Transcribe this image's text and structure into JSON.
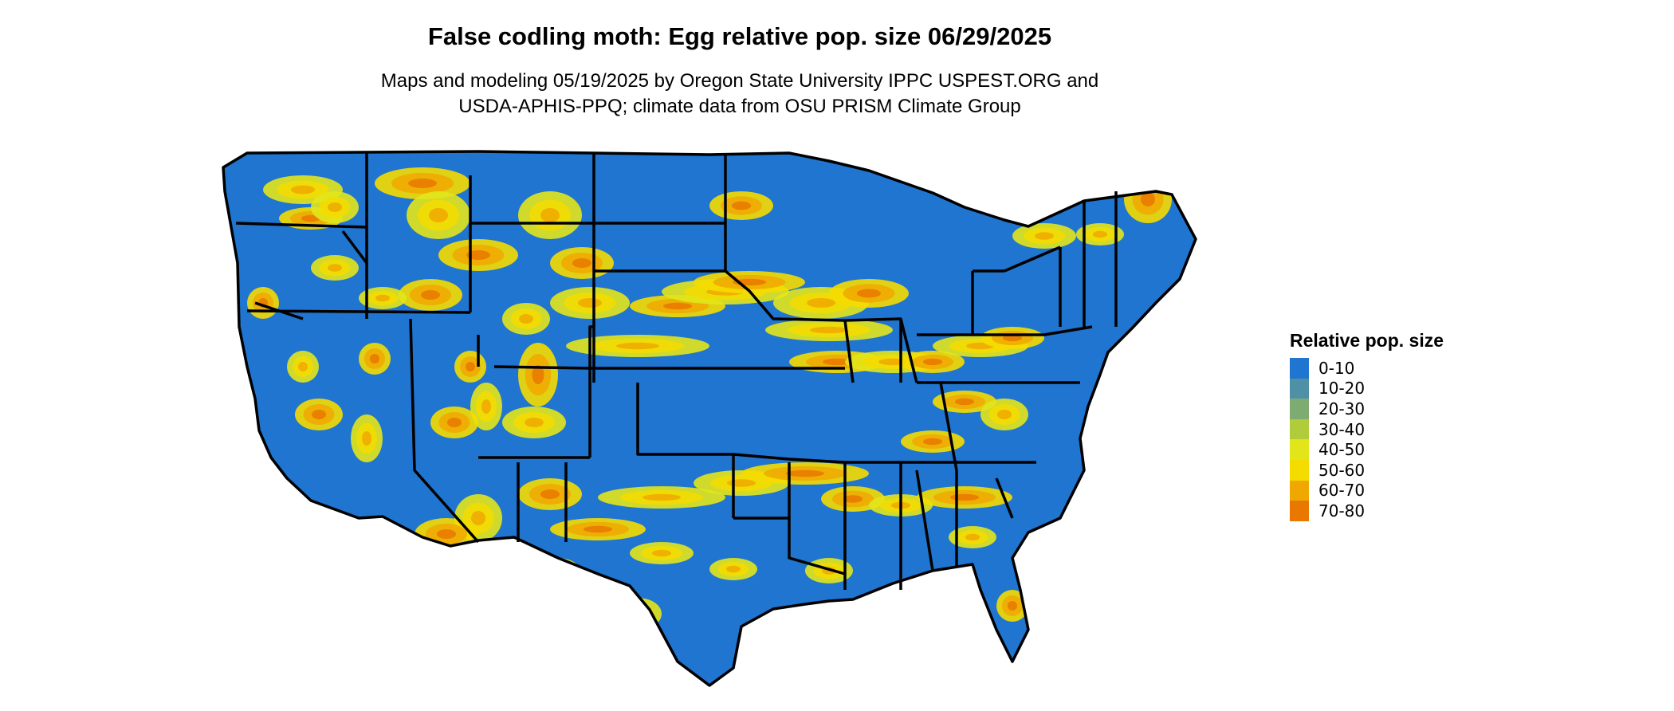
{
  "title": "False codling moth: Egg relative pop. size 06/29/2025",
  "subtitle_line1": "Maps and modeling 05/19/2025 by Oregon State University IPPC USPEST.ORG and",
  "subtitle_line2": "USDA-APHIS-PPQ; climate data from OSU PRISM Climate Group",
  "legend": {
    "title": "Relative pop. size",
    "items": [
      {
        "label": "0-10",
        "color": "#1f75cf"
      },
      {
        "label": "10-20",
        "color": "#4f90a6"
      },
      {
        "label": "20-30",
        "color": "#7eab72"
      },
      {
        "label": "30-40",
        "color": "#b0cc3a"
      },
      {
        "label": "40-50",
        "color": "#e2e51a"
      },
      {
        "label": "50-60",
        "color": "#f5dc00"
      },
      {
        "label": "60-70",
        "color": "#f0a800"
      },
      {
        "label": "70-80",
        "color": "#e87800"
      }
    ]
  },
  "map": {
    "base_color": "#1f75cf",
    "border_color": "#000000",
    "hotspot_colors": [
      "#e2e51a",
      "#f5dc00",
      "#f0a800",
      "#e87800",
      "#cc3300"
    ]
  }
}
